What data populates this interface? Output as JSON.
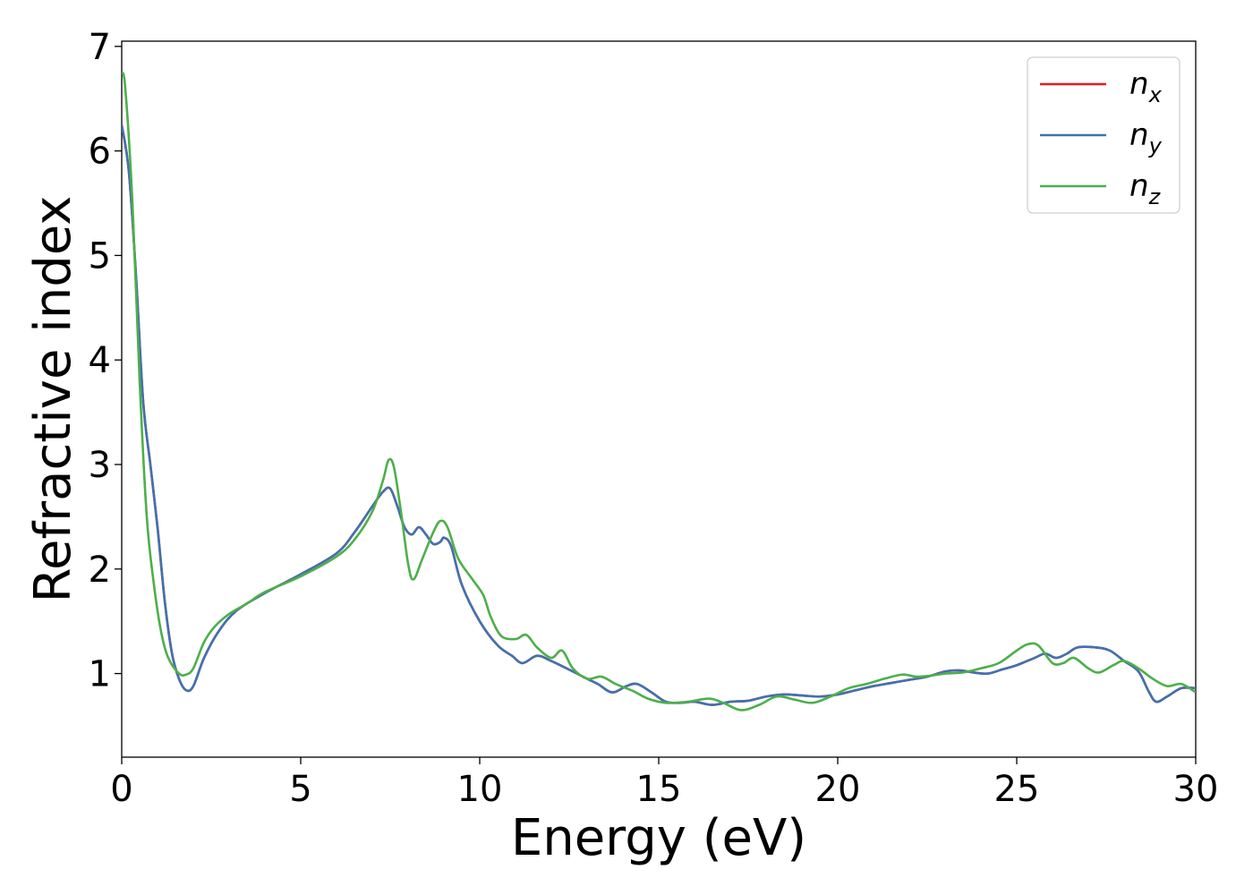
{
  "chart_data": {
    "type": "line",
    "title": "",
    "xlabel": "Energy (eV)",
    "ylabel": "Refractive index",
    "xlim": [
      0,
      30
    ],
    "ylim": [
      0.2,
      7.05
    ],
    "xticks": [
      0,
      5,
      10,
      15,
      20,
      25,
      30
    ],
    "xtick_labels": [
      "0",
      "5",
      "10",
      "15",
      "20",
      "25",
      "30"
    ],
    "yticks": [
      1,
      2,
      3,
      4,
      5,
      6,
      7
    ],
    "ytick_labels": [
      "1",
      "2",
      "3",
      "4",
      "5",
      "6",
      "7"
    ],
    "grid": false,
    "legend_position": "top-right",
    "series": [
      {
        "name": "n_x",
        "legend_base": "n",
        "legend_sub": "x",
        "color": "#e41a1c",
        "points": [
          [
            0,
            6.25
          ],
          [
            0.2,
            5.8
          ],
          [
            0.4,
            4.8
          ],
          [
            0.6,
            3.6
          ],
          [
            0.8,
            3.0
          ],
          [
            1.0,
            2.4
          ],
          [
            1.2,
            1.7
          ],
          [
            1.4,
            1.2
          ],
          [
            1.6,
            0.95
          ],
          [
            1.8,
            0.84
          ],
          [
            2.0,
            0.88
          ],
          [
            2.3,
            1.15
          ],
          [
            2.7,
            1.4
          ],
          [
            3.2,
            1.6
          ],
          [
            4.0,
            1.77
          ],
          [
            5.0,
            1.95
          ],
          [
            6.0,
            2.15
          ],
          [
            6.5,
            2.35
          ],
          [
            7.0,
            2.6
          ],
          [
            7.3,
            2.74
          ],
          [
            7.5,
            2.77
          ],
          [
            7.7,
            2.6
          ],
          [
            7.9,
            2.4
          ],
          [
            8.1,
            2.33
          ],
          [
            8.3,
            2.4
          ],
          [
            8.5,
            2.33
          ],
          [
            8.7,
            2.24
          ],
          [
            8.9,
            2.26
          ],
          [
            9.0,
            2.3
          ],
          [
            9.2,
            2.22
          ],
          [
            9.5,
            1.85
          ],
          [
            10.0,
            1.5
          ],
          [
            10.5,
            1.27
          ],
          [
            10.9,
            1.17
          ],
          [
            11.2,
            1.1
          ],
          [
            11.6,
            1.17
          ],
          [
            12.0,
            1.12
          ],
          [
            12.6,
            1.02
          ],
          [
            13.0,
            0.95
          ],
          [
            13.3,
            0.9
          ],
          [
            13.7,
            0.82
          ],
          [
            14.1,
            0.88
          ],
          [
            14.4,
            0.9
          ],
          [
            14.8,
            0.82
          ],
          [
            15.2,
            0.73
          ],
          [
            15.6,
            0.72
          ],
          [
            16.0,
            0.73
          ],
          [
            16.5,
            0.7
          ],
          [
            17.0,
            0.73
          ],
          [
            17.5,
            0.74
          ],
          [
            18.0,
            0.78
          ],
          [
            18.5,
            0.8
          ],
          [
            19.0,
            0.79
          ],
          [
            19.5,
            0.78
          ],
          [
            20.0,
            0.8
          ],
          [
            20.5,
            0.84
          ],
          [
            21.0,
            0.88
          ],
          [
            21.5,
            0.91
          ],
          [
            22.0,
            0.94
          ],
          [
            22.5,
            0.97
          ],
          [
            23.0,
            1.02
          ],
          [
            23.4,
            1.03
          ],
          [
            23.8,
            1.01
          ],
          [
            24.2,
            1.0
          ],
          [
            24.6,
            1.04
          ],
          [
            25.0,
            1.08
          ],
          [
            25.5,
            1.15
          ],
          [
            25.8,
            1.19
          ],
          [
            26.1,
            1.15
          ],
          [
            26.4,
            1.19
          ],
          [
            26.7,
            1.25
          ],
          [
            27.2,
            1.25
          ],
          [
            27.6,
            1.22
          ],
          [
            28.0,
            1.12
          ],
          [
            28.4,
            1.02
          ],
          [
            28.7,
            0.82
          ],
          [
            28.9,
            0.73
          ],
          [
            29.2,
            0.78
          ],
          [
            29.6,
            0.86
          ],
          [
            30.0,
            0.86
          ]
        ]
      },
      {
        "name": "n_y",
        "legend_base": "n",
        "legend_sub": "y",
        "color": "#3f72b0",
        "points": [
          [
            0,
            6.25
          ],
          [
            0.2,
            5.8
          ],
          [
            0.4,
            4.8
          ],
          [
            0.6,
            3.6
          ],
          [
            0.8,
            3.0
          ],
          [
            1.0,
            2.4
          ],
          [
            1.2,
            1.7
          ],
          [
            1.4,
            1.2
          ],
          [
            1.6,
            0.95
          ],
          [
            1.8,
            0.84
          ],
          [
            2.0,
            0.88
          ],
          [
            2.3,
            1.15
          ],
          [
            2.7,
            1.4
          ],
          [
            3.2,
            1.6
          ],
          [
            4.0,
            1.77
          ],
          [
            5.0,
            1.95
          ],
          [
            6.0,
            2.15
          ],
          [
            6.5,
            2.35
          ],
          [
            7.0,
            2.6
          ],
          [
            7.3,
            2.74
          ],
          [
            7.5,
            2.77
          ],
          [
            7.7,
            2.6
          ],
          [
            7.9,
            2.4
          ],
          [
            8.1,
            2.33
          ],
          [
            8.3,
            2.4
          ],
          [
            8.5,
            2.33
          ],
          [
            8.7,
            2.24
          ],
          [
            8.9,
            2.26
          ],
          [
            9.0,
            2.3
          ],
          [
            9.2,
            2.22
          ],
          [
            9.5,
            1.85
          ],
          [
            10.0,
            1.5
          ],
          [
            10.5,
            1.27
          ],
          [
            10.9,
            1.17
          ],
          [
            11.2,
            1.1
          ],
          [
            11.6,
            1.17
          ],
          [
            12.0,
            1.12
          ],
          [
            12.6,
            1.02
          ],
          [
            13.0,
            0.95
          ],
          [
            13.3,
            0.9
          ],
          [
            13.7,
            0.82
          ],
          [
            14.1,
            0.88
          ],
          [
            14.4,
            0.9
          ],
          [
            14.8,
            0.82
          ],
          [
            15.2,
            0.73
          ],
          [
            15.6,
            0.72
          ],
          [
            16.0,
            0.73
          ],
          [
            16.5,
            0.7
          ],
          [
            17.0,
            0.73
          ],
          [
            17.5,
            0.74
          ],
          [
            18.0,
            0.78
          ],
          [
            18.5,
            0.8
          ],
          [
            19.0,
            0.79
          ],
          [
            19.5,
            0.78
          ],
          [
            20.0,
            0.8
          ],
          [
            20.5,
            0.84
          ],
          [
            21.0,
            0.88
          ],
          [
            21.5,
            0.91
          ],
          [
            22.0,
            0.94
          ],
          [
            22.5,
            0.97
          ],
          [
            23.0,
            1.02
          ],
          [
            23.4,
            1.03
          ],
          [
            23.8,
            1.01
          ],
          [
            24.2,
            1.0
          ],
          [
            24.6,
            1.04
          ],
          [
            25.0,
            1.08
          ],
          [
            25.5,
            1.15
          ],
          [
            25.8,
            1.19
          ],
          [
            26.1,
            1.15
          ],
          [
            26.4,
            1.19
          ],
          [
            26.7,
            1.25
          ],
          [
            27.2,
            1.25
          ],
          [
            27.6,
            1.22
          ],
          [
            28.0,
            1.12
          ],
          [
            28.4,
            1.02
          ],
          [
            28.7,
            0.82
          ],
          [
            28.9,
            0.73
          ],
          [
            29.2,
            0.78
          ],
          [
            29.6,
            0.86
          ],
          [
            30.0,
            0.86
          ]
        ]
      },
      {
        "name": "n_z",
        "legend_base": "n",
        "legend_sub": "z",
        "color": "#4daf4a",
        "points": [
          [
            0,
            6.75
          ],
          [
            0.1,
            6.6
          ],
          [
            0.3,
            5.5
          ],
          [
            0.5,
            3.8
          ],
          [
            0.7,
            2.5
          ],
          [
            0.9,
            1.85
          ],
          [
            1.1,
            1.4
          ],
          [
            1.3,
            1.15
          ],
          [
            1.6,
            1.0
          ],
          [
            1.8,
            0.99
          ],
          [
            2.0,
            1.05
          ],
          [
            2.3,
            1.3
          ],
          [
            2.6,
            1.45
          ],
          [
            3.0,
            1.57
          ],
          [
            3.5,
            1.67
          ],
          [
            4.0,
            1.78
          ],
          [
            5.0,
            1.93
          ],
          [
            6.0,
            2.12
          ],
          [
            6.5,
            2.28
          ],
          [
            7.0,
            2.55
          ],
          [
            7.3,
            2.85
          ],
          [
            7.45,
            3.04
          ],
          [
            7.6,
            2.98
          ],
          [
            7.8,
            2.55
          ],
          [
            8.0,
            2.05
          ],
          [
            8.15,
            1.9
          ],
          [
            8.4,
            2.1
          ],
          [
            8.7,
            2.35
          ],
          [
            8.9,
            2.46
          ],
          [
            9.1,
            2.4
          ],
          [
            9.4,
            2.1
          ],
          [
            9.8,
            1.9
          ],
          [
            10.1,
            1.75
          ],
          [
            10.3,
            1.55
          ],
          [
            10.6,
            1.36
          ],
          [
            11.0,
            1.33
          ],
          [
            11.3,
            1.37
          ],
          [
            11.6,
            1.25
          ],
          [
            12.0,
            1.15
          ],
          [
            12.3,
            1.22
          ],
          [
            12.6,
            1.05
          ],
          [
            13.0,
            0.95
          ],
          [
            13.4,
            0.97
          ],
          [
            13.8,
            0.9
          ],
          [
            14.3,
            0.83
          ],
          [
            14.7,
            0.76
          ],
          [
            15.2,
            0.72
          ],
          [
            15.8,
            0.73
          ],
          [
            16.4,
            0.76
          ],
          [
            16.8,
            0.72
          ],
          [
            17.3,
            0.65
          ],
          [
            17.8,
            0.7
          ],
          [
            18.3,
            0.78
          ],
          [
            18.8,
            0.75
          ],
          [
            19.3,
            0.72
          ],
          [
            19.8,
            0.78
          ],
          [
            20.3,
            0.86
          ],
          [
            20.8,
            0.9
          ],
          [
            21.3,
            0.95
          ],
          [
            21.8,
            0.99
          ],
          [
            22.2,
            0.97
          ],
          [
            22.6,
            0.98
          ],
          [
            23.0,
            1.0
          ],
          [
            23.5,
            1.01
          ],
          [
            24.0,
            1.05
          ],
          [
            24.5,
            1.1
          ],
          [
            25.0,
            1.22
          ],
          [
            25.3,
            1.28
          ],
          [
            25.6,
            1.27
          ],
          [
            26.0,
            1.1
          ],
          [
            26.3,
            1.1
          ],
          [
            26.6,
            1.15
          ],
          [
            27.0,
            1.05
          ],
          [
            27.3,
            1.01
          ],
          [
            27.7,
            1.08
          ],
          [
            28.0,
            1.12
          ],
          [
            28.4,
            1.05
          ],
          [
            28.8,
            0.95
          ],
          [
            29.2,
            0.88
          ],
          [
            29.6,
            0.9
          ],
          [
            30.0,
            0.82
          ]
        ]
      }
    ]
  }
}
